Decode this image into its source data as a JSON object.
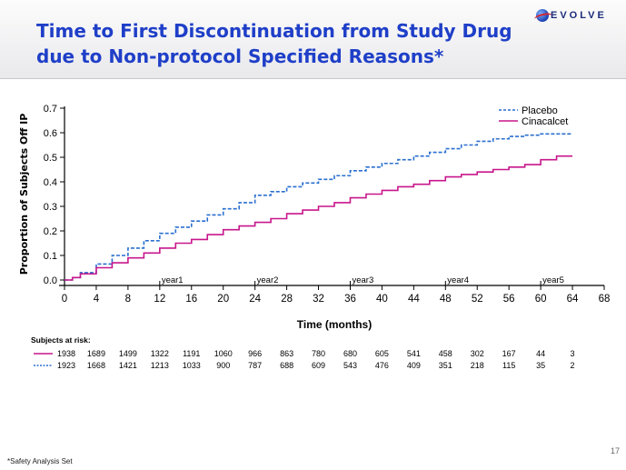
{
  "slide": {
    "title_line1": "Time to First Discontinuation from Study Drug",
    "title_line2": "due to Non-protocol Specified Reasons*",
    "logo_text": "EVOLVE",
    "footnote": "*Safety Analysis Set",
    "page_number": "17"
  },
  "colors": {
    "title": "#1f3fc8",
    "placebo": "#2a6fcf",
    "cinacalcet": "#c8168c",
    "axis": "#000000"
  },
  "chart_data": {
    "type": "line",
    "title": "",
    "xlabel": "Time (months)",
    "ylabel": "Proportion  of Subjects Off IP",
    "xlim": [
      0,
      68
    ],
    "ylim": [
      0,
      0.7
    ],
    "xticks": [
      0,
      4,
      8,
      12,
      16,
      20,
      24,
      28,
      32,
      36,
      40,
      44,
      48,
      52,
      56,
      60,
      64,
      68
    ],
    "yticks": [
      0.0,
      0.1,
      0.2,
      0.3,
      0.4,
      0.5,
      0.6,
      0.7
    ],
    "ytick_labels": [
      "0.0",
      "0.1",
      "0.2",
      "0.3",
      "0.4",
      "0.5",
      "0.6",
      "0.7"
    ],
    "legend_position": "top-right",
    "year_markers": [
      {
        "label": "year1",
        "x": 12
      },
      {
        "label": "year2",
        "x": 24
      },
      {
        "label": "year3",
        "x": 36
      },
      {
        "label": "year4",
        "x": 48
      },
      {
        "label": "year5",
        "x": 60
      }
    ],
    "series": [
      {
        "name": "Placebo",
        "style": "dashed",
        "x": [
          0,
          1,
          2,
          4,
          6,
          8,
          10,
          12,
          14,
          16,
          18,
          20,
          22,
          24,
          26,
          28,
          30,
          32,
          34,
          36,
          38,
          40,
          42,
          44,
          46,
          48,
          50,
          52,
          54,
          56,
          58,
          60,
          62,
          64
        ],
        "y": [
          0,
          0.01,
          0.03,
          0.065,
          0.1,
          0.13,
          0.16,
          0.19,
          0.215,
          0.24,
          0.265,
          0.29,
          0.315,
          0.345,
          0.36,
          0.38,
          0.395,
          0.41,
          0.425,
          0.445,
          0.46,
          0.475,
          0.49,
          0.505,
          0.52,
          0.535,
          0.55,
          0.565,
          0.575,
          0.585,
          0.59,
          0.595,
          0.595,
          0.595
        ]
      },
      {
        "name": "Cinacalcet",
        "style": "solid",
        "x": [
          0,
          1,
          2,
          4,
          6,
          8,
          10,
          12,
          14,
          16,
          18,
          20,
          22,
          24,
          26,
          28,
          30,
          32,
          34,
          36,
          38,
          40,
          42,
          44,
          46,
          48,
          50,
          52,
          54,
          56,
          58,
          60,
          62,
          64
        ],
        "y": [
          0,
          0.01,
          0.025,
          0.05,
          0.07,
          0.09,
          0.11,
          0.13,
          0.15,
          0.165,
          0.185,
          0.205,
          0.22,
          0.235,
          0.25,
          0.27,
          0.285,
          0.3,
          0.315,
          0.335,
          0.35,
          0.365,
          0.38,
          0.39,
          0.405,
          0.42,
          0.43,
          0.44,
          0.45,
          0.46,
          0.47,
          0.49,
          0.505,
          0.505
        ]
      }
    ],
    "at_risk": {
      "title": "Subjects at risk:",
      "times": [
        0,
        4,
        8,
        12,
        16,
        20,
        24,
        28,
        32,
        36,
        40,
        44,
        48,
        52,
        56,
        60,
        64
      ],
      "rows": [
        {
          "series": "Cinacalcet",
          "values": [
            "1938",
            "1689",
            "1499",
            "1322",
            "1191",
            "1060",
            "966",
            "863",
            "780",
            "680",
            "605",
            "541",
            "458",
            "302",
            "167",
            "44",
            "3"
          ]
        },
        {
          "series": "Placebo",
          "values": [
            "1923",
            "1668",
            "1421",
            "1213",
            "1033",
            "900",
            "787",
            "688",
            "609",
            "543",
            "476",
            "409",
            "351",
            "218",
            "115",
            "35",
            "2"
          ]
        }
      ]
    }
  }
}
